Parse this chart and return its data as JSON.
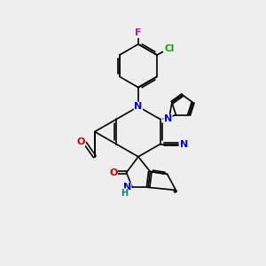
{
  "background_color": "#eeeeee",
  "figsize": [
    3.0,
    3.0
  ],
  "dpi": 100,
  "atom_colors": {
    "N": "#0000cc",
    "O": "#cc0000",
    "F": "#cc00cc",
    "Cl": "#00aa00",
    "C": "#000000",
    "H": "#008888"
  },
  "bond_color": "#000000",
  "bond_width": 1.2
}
